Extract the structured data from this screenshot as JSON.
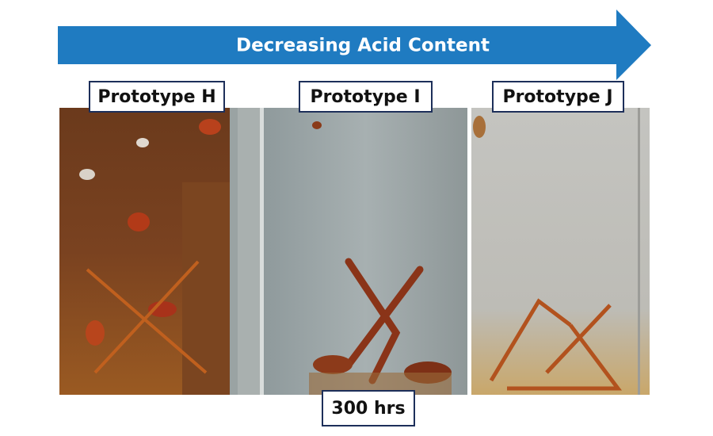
{
  "arrow": {
    "label": "Decreasing Acid Content"
  },
  "panels": [
    {
      "label": "Prototype H"
    },
    {
      "label": "Prototype I"
    },
    {
      "label": "Prototype J"
    }
  ],
  "caption": "300 hrs"
}
